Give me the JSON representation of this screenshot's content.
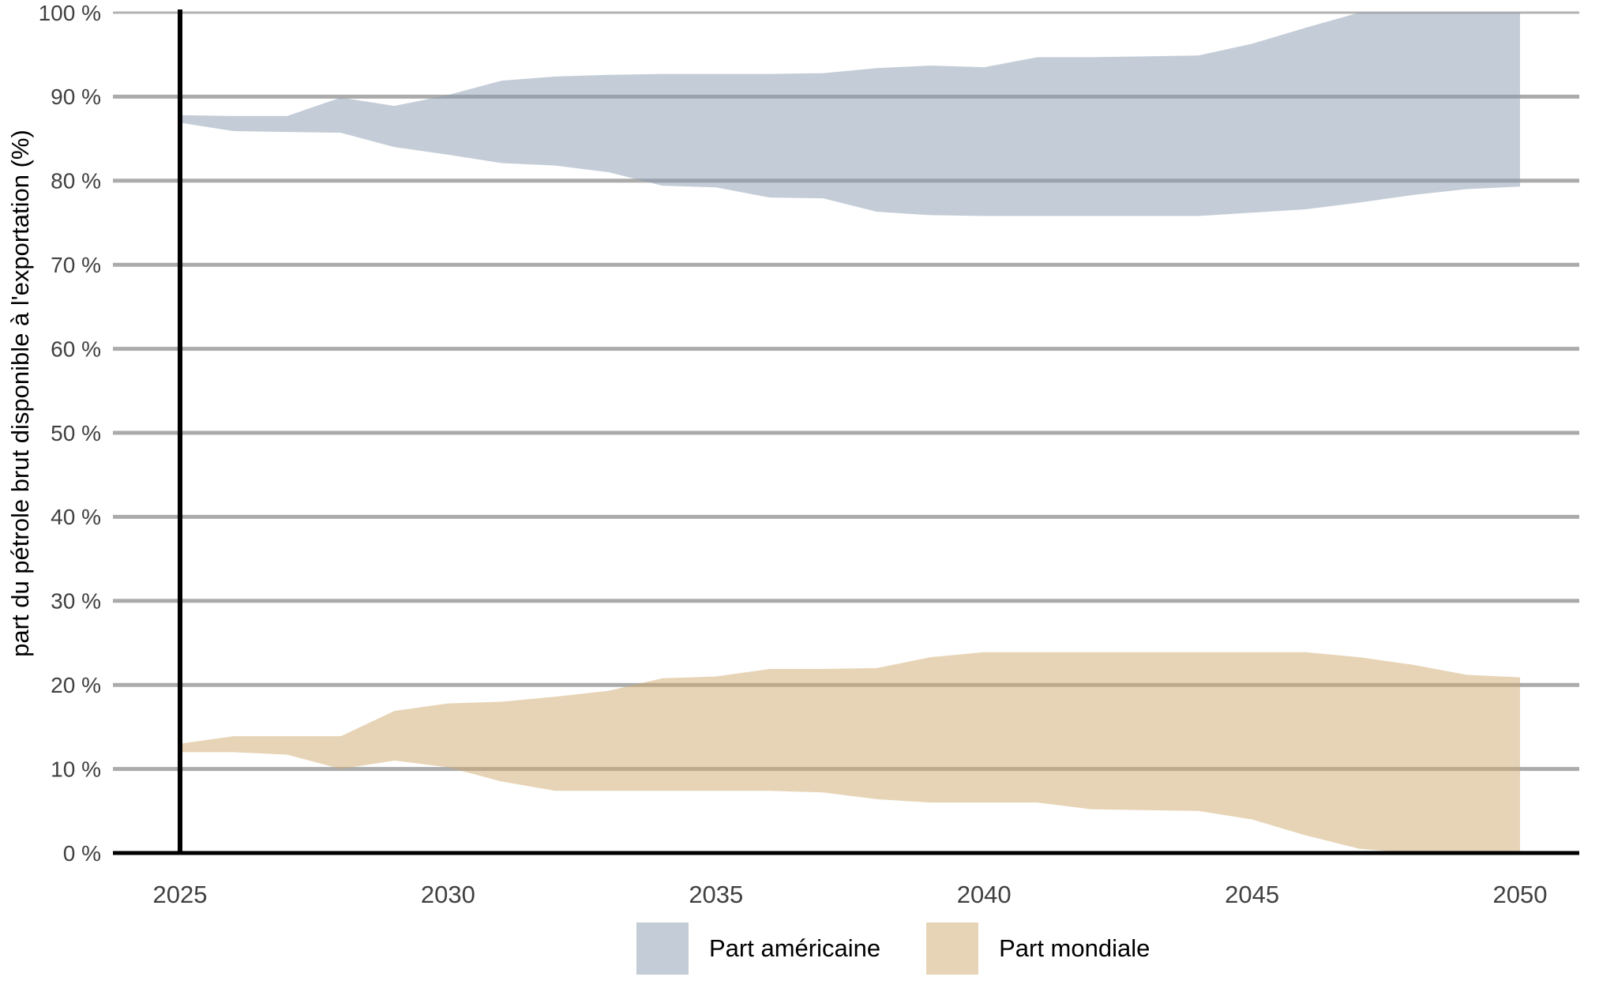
{
  "chart_data": {
    "type": "area",
    "title": "",
    "xlabel": "",
    "ylabel": "part du pétrole brut disponible à l'exportation (%)",
    "xlim": [
      2025,
      2050
    ],
    "ylim": [
      0,
      100
    ],
    "grid": "horizontal-major-10pct",
    "legend_position": "bottom-center",
    "vline_year": 2025,
    "years": [
      2025,
      2026,
      2027,
      2028,
      2029,
      2030,
      2031,
      2032,
      2033,
      2034,
      2035,
      2036,
      2037,
      2038,
      2039,
      2040,
      2041,
      2042,
      2043,
      2044,
      2045,
      2046,
      2047,
      2048,
      2049,
      2050
    ],
    "x_ticks": [
      2025,
      2030,
      2035,
      2040,
      2045,
      2050
    ],
    "x_tick_labels": [
      "2025",
      "2030",
      "2035",
      "2040",
      "2045",
      "2050"
    ],
    "y_ticks": [
      0,
      10,
      20,
      30,
      40,
      50,
      60,
      70,
      80,
      90,
      100
    ],
    "y_tick_labels": [
      "0 %",
      "10 %",
      "20 %",
      "30 %",
      "40 %",
      "50 %",
      "60 %",
      "70 %",
      "80 %",
      "90 %",
      "100 %"
    ],
    "series": [
      {
        "name": "Part américaine",
        "kind": "ribbon",
        "fill": "rgba(138,156,176,0.5)",
        "upper": [
          87.8,
          87.7,
          87.7,
          89.9,
          88.9,
          90.2,
          91.9,
          92.4,
          92.6,
          92.7,
          92.7,
          92.7,
          92.8,
          93.4,
          93.7,
          93.5,
          94.7,
          94.7,
          94.8,
          94.9,
          96.3,
          98.2,
          100,
          100,
          100,
          100
        ],
        "lower": [
          86.9,
          85.9,
          85.8,
          85.7,
          84.0,
          83.1,
          82.1,
          81.8,
          81.0,
          79.4,
          79.2,
          78.0,
          77.9,
          76.3,
          75.9,
          75.8,
          75.8,
          75.8,
          75.8,
          75.8,
          76.2,
          76.6,
          77.4,
          78.3,
          79.0,
          79.3
        ]
      },
      {
        "name": "Part mondiale",
        "kind": "ribbon",
        "fill": "rgba(207,169,110,0.5)",
        "upper": [
          13.0,
          13.9,
          13.9,
          13.9,
          16.9,
          17.8,
          18.0,
          18.6,
          19.3,
          20.8,
          21.0,
          21.9,
          21.9,
          22.0,
          23.3,
          23.9,
          23.9,
          23.9,
          23.9,
          23.9,
          23.9,
          23.9,
          23.3,
          22.4,
          21.2,
          20.9
        ],
        "lower": [
          12.0,
          12.0,
          11.7,
          10.0,
          11.0,
          10.2,
          8.5,
          7.4,
          7.4,
          7.4,
          7.4,
          7.4,
          7.2,
          6.4,
          6.0,
          6.0,
          6.0,
          5.2,
          5.1,
          5.0,
          4.0,
          2.1,
          0.5,
          0.0,
          0.0,
          0.0
        ]
      }
    ]
  },
  "colors": {
    "background": "#ffffff",
    "gridline": "#ababab",
    "top_gridline": "#b3b3b3",
    "axis_line": "#000000",
    "vline": "#000000",
    "tick_label": "#404040",
    "axis_title": "#000000"
  }
}
